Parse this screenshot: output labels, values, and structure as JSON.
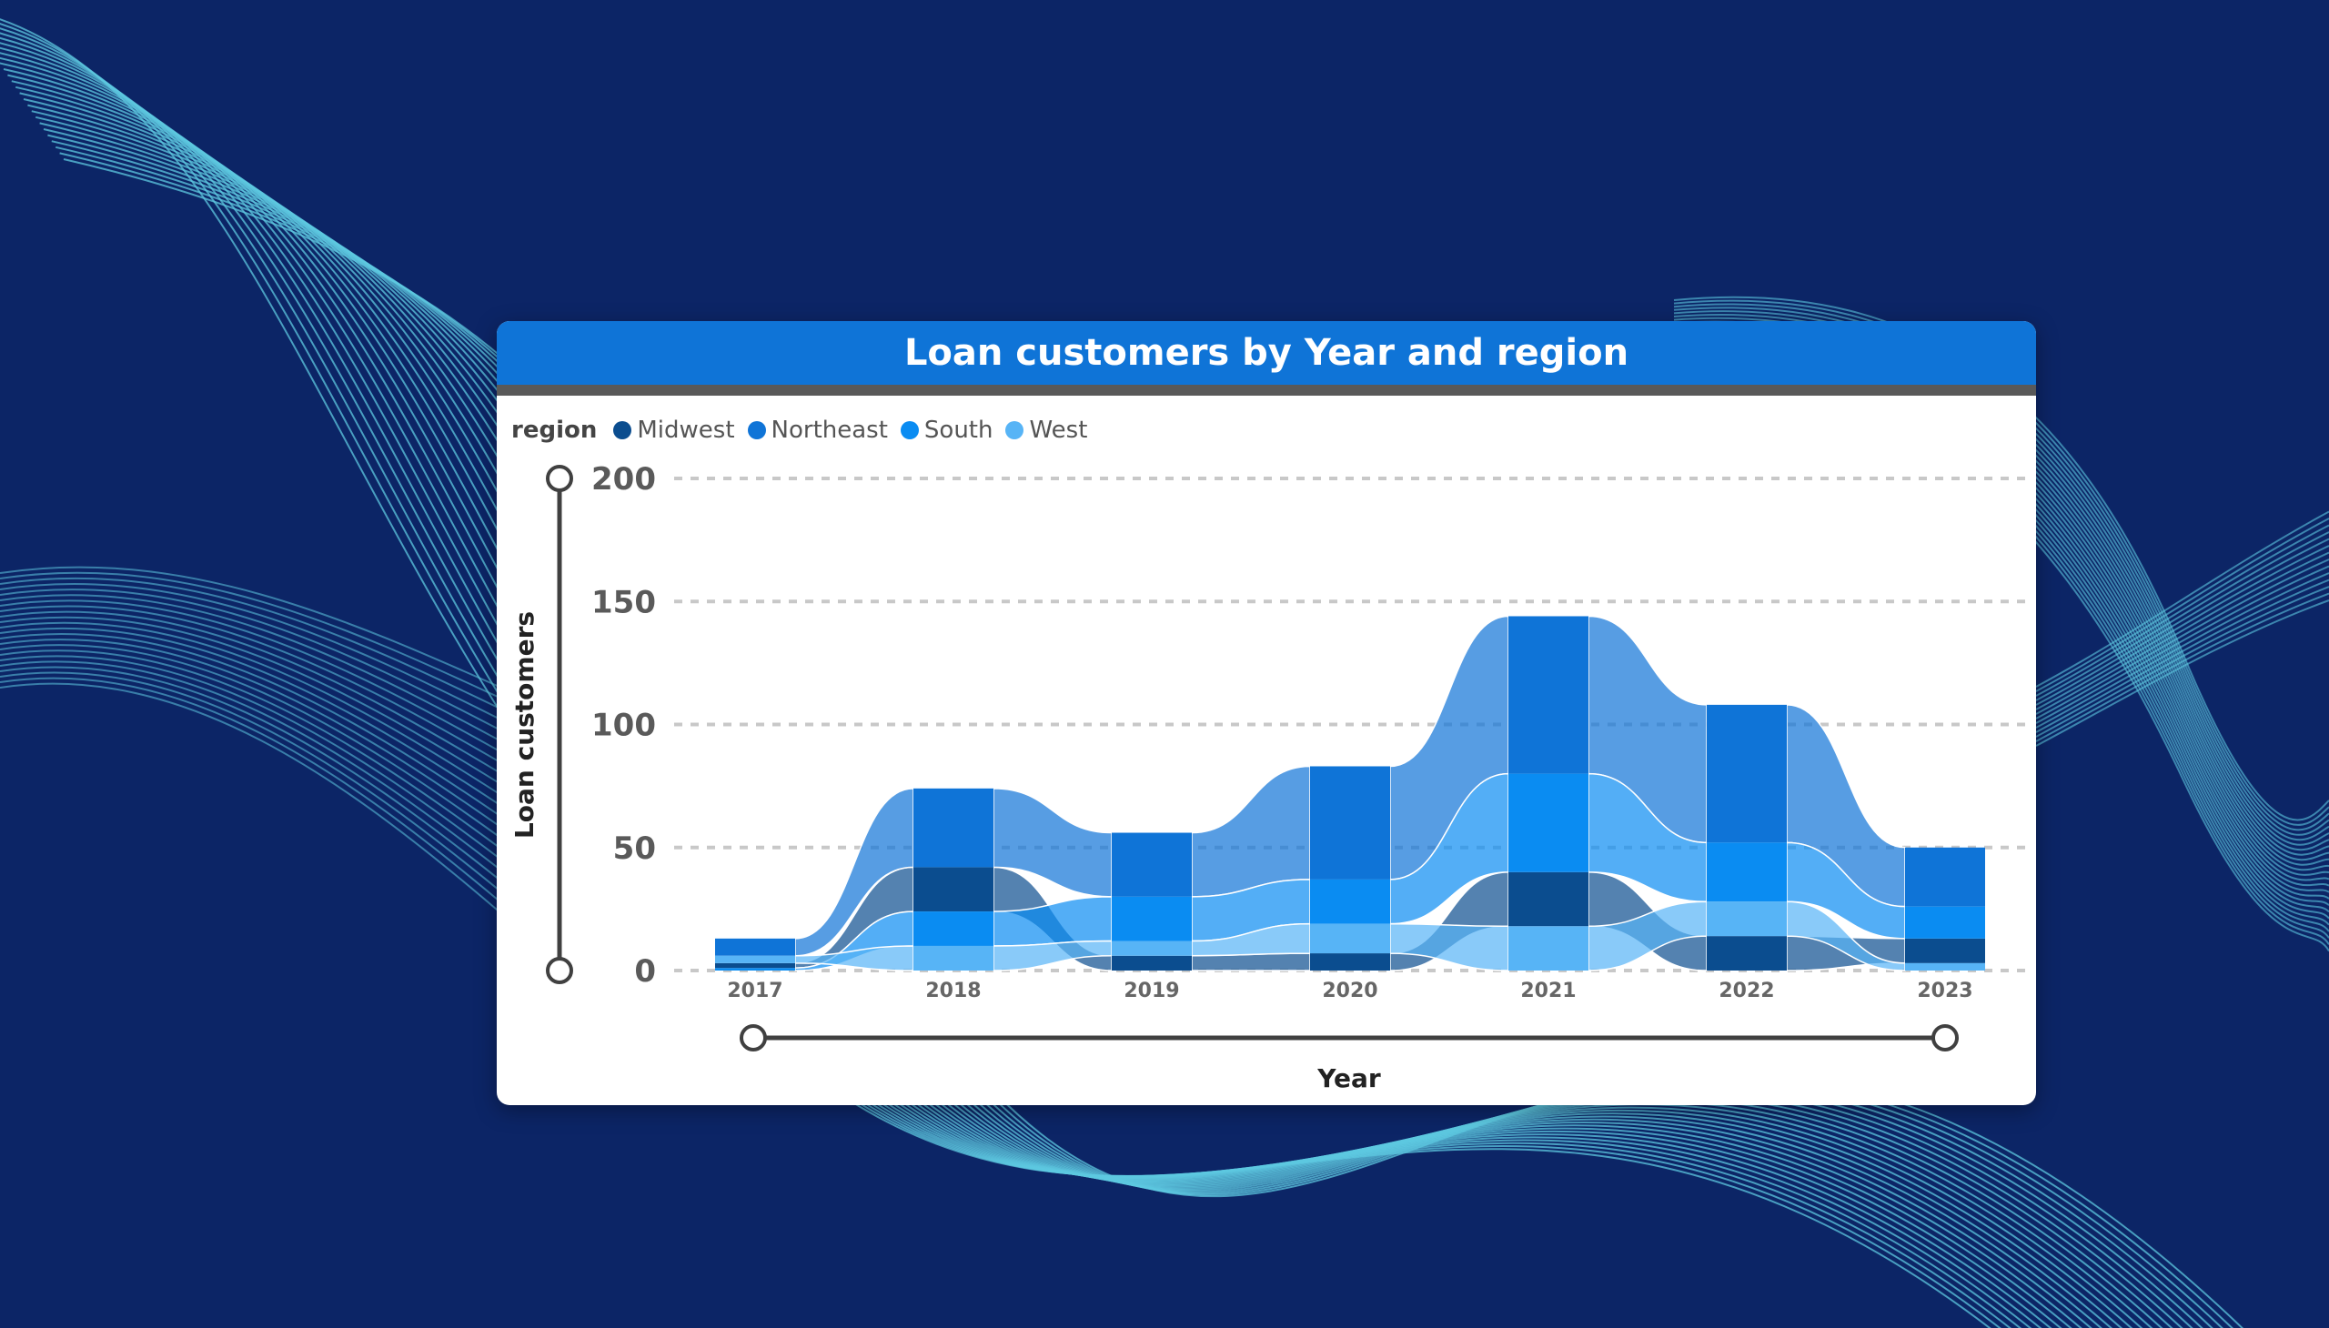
{
  "colors": {
    "background": "#0c2566",
    "wave": "#5ec8e0",
    "header": "#0f74d7",
    "header_rule": "#595959",
    "gridline": "#c8c8c8",
    "slider": "#404040"
  },
  "chart_data": {
    "type": "area",
    "subtype": "ribbon",
    "title": "Loan customers by Year and region",
    "xlabel": "Year",
    "ylabel": "Loan customers",
    "ylim": [
      0,
      200
    ],
    "yticks": [
      0,
      50,
      100,
      150,
      200
    ],
    "grid": true,
    "legend_title": "region",
    "legend_position": "top-left",
    "categories": [
      "2017",
      "2018",
      "2019",
      "2020",
      "2021",
      "2022",
      "2023"
    ],
    "series": [
      {
        "name": "Midwest",
        "color": "#0b4d8f",
        "values": [
          2,
          18,
          6,
          7,
          22,
          14,
          10
        ]
      },
      {
        "name": "Northeast",
        "color": "#0f74d7",
        "values": [
          7,
          32,
          26,
          46,
          64,
          56,
          24
        ]
      },
      {
        "name": "South",
        "color": "#0a8cf2",
        "values": [
          1,
          14,
          18,
          18,
          40,
          24,
          13
        ]
      },
      {
        "name": "West",
        "color": "#57b4f6",
        "values": [
          3,
          10,
          6,
          12,
          18,
          14,
          3
        ]
      }
    ]
  }
}
